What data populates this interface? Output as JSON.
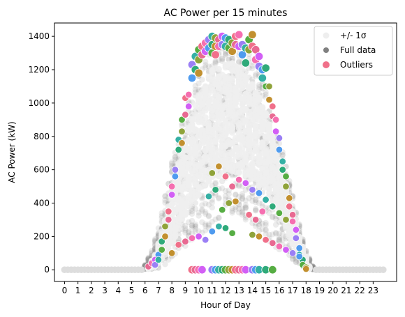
{
  "chart_data": {
    "type": "scatter",
    "title": "AC Power per 15 minutes",
    "xlabel": "Hour of Day",
    "ylabel": "AC Power (kW)",
    "xlim": [
      -0.75,
      24.75
    ],
    "ylim": [
      -70,
      1480
    ],
    "x_ticks": [
      0,
      1,
      2,
      3,
      4,
      5,
      6,
      7,
      8,
      9,
      10,
      11,
      12,
      13,
      14,
      15,
      16,
      17,
      18,
      19,
      20,
      21,
      22,
      23
    ],
    "y_ticks": [
      0,
      200,
      400,
      600,
      800,
      1000,
      1200,
      1400
    ],
    "grid": false,
    "legend_position": "top-right",
    "legend": [
      {
        "label": "+/- 1σ",
        "color": "#eeeeee"
      },
      {
        "label": "Full data",
        "color": "#808080"
      },
      {
        "label": "Outliers",
        "color": "#f0708a"
      }
    ],
    "band_sigma": {
      "name": "+/- 1σ",
      "x": [
        6.25,
        6.75,
        7.0,
        7.5,
        8.0,
        8.5,
        9.0,
        9.5,
        10.0,
        10.5,
        11.0,
        11.5,
        12.0,
        12.5,
        13.0,
        13.5,
        14.0,
        14.5,
        15.0,
        15.5,
        16.0,
        16.5,
        17.0,
        17.5,
        18.0,
        18.25
      ],
      "lower": [
        5,
        20,
        40,
        90,
        150,
        240,
        330,
        400,
        440,
        500,
        540,
        560,
        580,
        590,
        580,
        560,
        540,
        500,
        460,
        400,
        320,
        240,
        150,
        80,
        30,
        5
      ],
      "upper": [
        20,
        90,
        160,
        300,
        470,
        640,
        800,
        930,
        1060,
        1150,
        1200,
        1230,
        1240,
        1240,
        1220,
        1180,
        1120,
        1040,
        940,
        820,
        680,
        520,
        360,
        200,
        80,
        20
      ]
    },
    "full_data_envelope": {
      "name": "Full data",
      "x": [
        6.0,
        6.5,
        7.0,
        7.5,
        8.0,
        8.5,
        9.0,
        9.5,
        10.0,
        10.5,
        11.0,
        11.5,
        12.0,
        12.5,
        13.0,
        13.5,
        14.0,
        14.5,
        15.0,
        15.5,
        16.0,
        16.5,
        17.0,
        17.5,
        18.0,
        18.5
      ],
      "lower": [
        0,
        5,
        10,
        30,
        60,
        100,
        140,
        170,
        200,
        230,
        260,
        300,
        330,
        340,
        330,
        300,
        260,
        220,
        180,
        150,
        120,
        90,
        60,
        30,
        5,
        0
      ],
      "upper": [
        30,
        120,
        250,
        450,
        650,
        820,
        950,
        1080,
        1200,
        1290,
        1340,
        1370,
        1380,
        1380,
        1370,
        1340,
        1290,
        1200,
        1090,
        960,
        810,
        640,
        460,
        280,
        120,
        20
      ]
    },
    "zero_line_x": [
      0,
      0.25,
      0.5,
      0.75,
      1,
      1.25,
      1.5,
      1.75,
      2,
      2.25,
      2.5,
      2.75,
      3,
      3.25,
      3.5,
      3.75,
      4,
      4.25,
      4.5,
      4.75,
      5,
      5.25,
      5.5,
      5.75,
      18.75,
      19,
      19.25,
      19.5,
      19.75,
      20,
      20.25,
      20.5,
      20.75,
      21,
      21.25,
      21.5,
      21.75,
      22,
      22.25,
      22.5,
      22.75,
      23,
      23.25,
      23.5,
      23.75
    ],
    "outliers": {
      "name": "Outliers",
      "x": [
        6.25,
        6.5,
        6.75,
        6.75,
        7.0,
        7.0,
        7.25,
        7.25,
        7.5,
        7.5,
        7.75,
        7.75,
        8.0,
        8.0,
        8.25,
        8.25,
        8.5,
        8.5,
        8.75,
        8.75,
        8.75,
        9.0,
        9.0,
        9.25,
        9.25,
        9.5,
        9.5,
        9.75,
        9.75,
        10.0,
        10.0,
        10.0,
        10.25,
        10.25,
        10.5,
        10.5,
        10.75,
        10.75,
        11.0,
        11.0,
        11.0,
        11.25,
        11.25,
        11.25,
        11.5,
        11.5,
        11.75,
        11.75,
        12.0,
        12.0,
        12.25,
        12.25,
        12.5,
        12.5,
        12.75,
        12.75,
        13.0,
        13.0,
        13.25,
        13.25,
        13.5,
        13.5,
        13.75,
        13.75,
        14.0,
        14.0,
        14.25,
        14.25,
        14.5,
        14.5,
        14.75,
        14.75,
        15.0,
        15.0,
        15.25,
        15.25,
        15.5,
        15.5,
        15.75,
        15.75,
        16.0,
        16.0,
        16.25,
        16.25,
        16.5,
        16.5,
        16.75,
        16.75,
        17.0,
        17.0,
        17.25,
        17.25,
        17.5,
        17.5,
        17.75,
        17.75,
        18.0,
        18.0,
        9.5,
        9.75,
        10.0,
        10.25,
        11.0,
        11.25,
        11.5,
        11.75,
        12.0,
        12.25,
        12.5,
        12.75,
        13.0,
        13.25,
        13.5,
        14.0,
        14.25,
        14.5,
        15.0,
        15.5,
        11.0,
        11.5,
        12.0,
        12.5,
        13.0,
        13.5,
        14.0,
        14.5,
        15.0,
        15.5,
        16.0,
        16.5,
        8.0,
        8.5,
        9.0,
        9.5,
        10.0,
        10.5,
        11.0,
        11.5,
        12.0,
        12.5,
        14.0,
        14.5,
        15.0,
        15.5,
        16.0,
        16.5,
        17.0,
        17.5,
        10.75,
        11.25,
        11.75,
        12.25,
        12.75,
        13.75,
        14.25,
        14.75
      ],
      "y": [
        20,
        40,
        60,
        30,
        90,
        60,
        170,
        120,
        260,
        200,
        350,
        300,
        500,
        450,
        600,
        560,
        780,
        720,
        900,
        830,
        760,
        1030,
        930,
        1050,
        980,
        1230,
        1150,
        1280,
        1200,
        1320,
        1260,
        1180,
        1340,
        1290,
        1360,
        1310,
        1380,
        1330,
        1400,
        1350,
        1300,
        1390,
        1340,
        1290,
        1380,
        1340,
        1400,
        1350,
        1390,
        1340,
        1380,
        1330,
        1360,
        1310,
        1400,
        1350,
        1410,
        1340,
        1350,
        1290,
        1330,
        1240,
        1380,
        1320,
        1410,
        1340,
        1320,
        1260,
        1280,
        1220,
        1200,
        1150,
        1210,
        1100,
        1100,
        1020,
        980,
        920,
        900,
        830,
        790,
        720,
        650,
        600,
        560,
        500,
        430,
        380,
        330,
        290,
        240,
        190,
        130,
        90,
        60,
        30,
        15,
        5,
        0,
        0,
        0,
        0,
        0,
        0,
        0,
        0,
        0,
        0,
        0,
        0,
        0,
        0,
        0,
        0,
        0,
        0,
        0,
        0,
        580,
        620,
        560,
        500,
        540,
        520,
        480,
        460,
        420,
        380,
        340,
        300,
        100,
        150,
        170,
        190,
        200,
        180,
        230,
        260,
        250,
        220,
        210,
        200,
        180,
        160,
        140,
        120,
        100,
        80,
        440,
        480,
        360,
        400,
        410,
        330,
        300,
        350
      ],
      "palette": [
        "#e86a92",
        "#f56fb0",
        "#d25ff5",
        "#9b7ff5",
        "#4f9bef",
        "#35b0a4",
        "#2faa7a",
        "#56ad43",
        "#8fa33a",
        "#c2902f",
        "#f0708a"
      ]
    }
  }
}
